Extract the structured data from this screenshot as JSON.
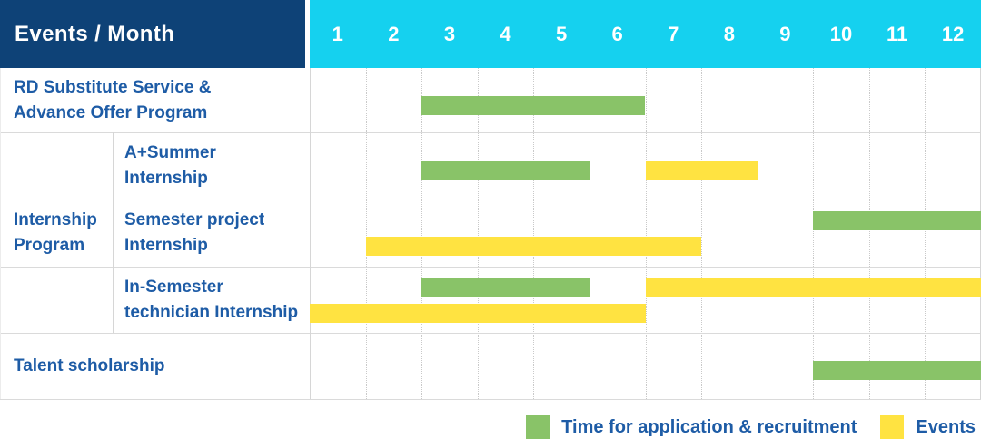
{
  "colors": {
    "navy_header": "#0e4277",
    "cyan_header": "#15d1ef",
    "recruitment_green": "#89c368",
    "events_yellow": "#ffe341",
    "label_blue": "#1e5ca6"
  },
  "header": {
    "title": "Events / Month"
  },
  "chart_data": {
    "type": "gantt",
    "title": "Events / Month",
    "x_axis_label": "Month",
    "x_range": [
      1,
      12
    ],
    "months": [
      "1",
      "2",
      "3",
      "4",
      "5",
      "6",
      "7",
      "8",
      "9",
      "10",
      "11",
      "12"
    ],
    "legend_position": "bottom-right",
    "legend": [
      {
        "key": "recruitment",
        "label": "Time for application & recruitment",
        "color": "#89c368"
      },
      {
        "key": "events",
        "label": "Events",
        "color": "#ffe341"
      }
    ],
    "group": {
      "label": "Internship Program",
      "label_lines": [
        "Internship",
        "Program"
      ],
      "covers_rows": [
        1,
        2,
        3
      ]
    },
    "rows": [
      {
        "label": "RD Substitute Service & Advance Offer Program",
        "label_lines": [
          "RD Substitute Service &",
          "Advance Offer Program"
        ],
        "in_group": false,
        "bars": [
          {
            "series": "recruitment",
            "start_month": 3,
            "end_month": 6,
            "lane": "center"
          }
        ]
      },
      {
        "label": "A+Summer Internship",
        "label_lines": [
          "A+Summer",
          "Internship"
        ],
        "in_group": true,
        "bars": [
          {
            "series": "recruitment",
            "start_month": 3,
            "end_month": 5,
            "lane": "center"
          },
          {
            "series": "events",
            "start_month": 7,
            "end_month": 8,
            "lane": "center"
          }
        ]
      },
      {
        "label": "Semester project Internship",
        "label_lines": [
          "Semester project",
          "Internship"
        ],
        "in_group": true,
        "bars": [
          {
            "series": "recruitment",
            "start_month": 10,
            "end_month": 12,
            "lane": "top"
          },
          {
            "series": "events",
            "start_month": 2,
            "end_month": 7,
            "lane": "bottom"
          }
        ]
      },
      {
        "label": "In-Semester technician Internship",
        "label_lines": [
          "In-Semester",
          "technician Internship"
        ],
        "in_group": true,
        "bars": [
          {
            "series": "recruitment",
            "start_month": 3,
            "end_month": 5,
            "lane": "top"
          },
          {
            "series": "events",
            "start_month": 7,
            "end_month": 12,
            "lane": "top"
          },
          {
            "series": "events",
            "start_month": 1,
            "end_month": 6,
            "lane": "bottom"
          }
        ]
      },
      {
        "label": "Talent scholarship",
        "label_lines": [
          "Talent scholarship"
        ],
        "in_group": false,
        "bars": [
          {
            "series": "recruitment",
            "start_month": 10,
            "end_month": 12,
            "lane": "center"
          }
        ]
      }
    ]
  }
}
